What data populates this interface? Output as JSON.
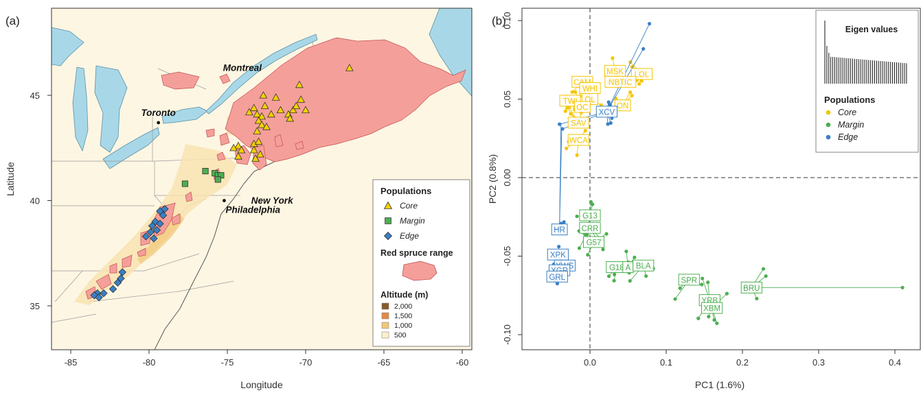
{
  "panel_a": {
    "label": "(a)",
    "xlabel": "Longitude",
    "ylabel": "Latitude",
    "xticks": [
      "-85",
      "-80",
      "-75",
      "-70",
      "-65",
      "-60"
    ],
    "yticks": [
      "35",
      "40",
      "45"
    ],
    "cities": [
      {
        "name": "Montreal",
        "lon": -73.6,
        "lat": 45.5,
        "dot": false
      },
      {
        "name": "Toronto",
        "lon": -79.4,
        "lat": 43.7,
        "dot": true
      },
      {
        "name": "New York",
        "lon": -74.0,
        "lat": 40.7,
        "dot": false
      },
      {
        "name": "Philadelphia",
        "lon": -75.2,
        "lat": 40.0,
        "dot": true
      }
    ],
    "legend": {
      "populations_title": "Populations",
      "items": [
        {
          "label": "Core",
          "shape": "triangle",
          "color": "#f5d000"
        },
        {
          "label": "Margin",
          "shape": "square",
          "color": "#4caf50"
        },
        {
          "label": "Edge",
          "shape": "diamond",
          "color": "#3a7fc4"
        }
      ],
      "range_title": "Red spruce range",
      "range_color": "#f59f9a",
      "altitude_title": "Altitude (m)",
      "altitude": [
        {
          "label": "2,000",
          "color": "#8b5a2b"
        },
        {
          "label": "1,500",
          "color": "#e08a48"
        },
        {
          "label": "1,000",
          "color": "#f2c679"
        },
        {
          "label": "500",
          "color": "#fbefcd"
        }
      ]
    },
    "sites": {
      "core": [
        [
          -72.7,
          45.0
        ],
        [
          -71.9,
          44.9
        ],
        [
          -70.4,
          45.5
        ],
        [
          -70.3,
          44.8
        ],
        [
          -73.3,
          44.4
        ],
        [
          -72.6,
          44.5
        ],
        [
          -71.6,
          44.3
        ],
        [
          -70.8,
          44.3
        ],
        [
          -70.6,
          44.5
        ],
        [
          -73.6,
          44.2
        ],
        [
          -73.1,
          44.1
        ],
        [
          -72.2,
          44.1
        ],
        [
          -71.1,
          44.1
        ],
        [
          -70.0,
          44.3
        ],
        [
          -67.2,
          46.3
        ],
        [
          -72.8,
          44.0
        ],
        [
          -73.0,
          43.8
        ],
        [
          -71.0,
          43.9
        ],
        [
          -72.8,
          43.6
        ],
        [
          -72.5,
          43.5
        ],
        [
          -73.1,
          43.3
        ],
        [
          -73.3,
          42.7
        ],
        [
          -73.0,
          42.8
        ],
        [
          -74.3,
          42.6
        ],
        [
          -74.1,
          42.4
        ],
        [
          -74.6,
          42.5
        ],
        [
          -73.3,
          42.4
        ],
        [
          -72.9,
          42.2
        ],
        [
          -73.2,
          42.0
        ],
        [
          -74.3,
          42.1
        ]
      ],
      "margin": [
        [
          -76.4,
          41.4
        ],
        [
          -75.8,
          41.3
        ],
        [
          -75.6,
          41.2
        ],
        [
          -75.4,
          41.2
        ],
        [
          -75.6,
          41.0
        ],
        [
          -77.7,
          40.8
        ]
      ],
      "edge": [
        [
          -79.3,
          39.5
        ],
        [
          -79.0,
          39.6
        ],
        [
          -79.1,
          39.3
        ],
        [
          -79.6,
          39.0
        ],
        [
          -79.8,
          38.8
        ],
        [
          -79.3,
          38.9
        ],
        [
          -79.5,
          38.6
        ],
        [
          -79.9,
          38.5
        ],
        [
          -80.2,
          38.3
        ],
        [
          -79.7,
          38.2
        ],
        [
          -81.7,
          36.6
        ],
        [
          -81.8,
          36.3
        ],
        [
          -82.0,
          36.1
        ],
        [
          -82.3,
          35.8
        ],
        [
          -83.3,
          35.6
        ],
        [
          -83.5,
          35.5
        ],
        [
          -83.2,
          35.4
        ],
        [
          -82.9,
          35.6
        ]
      ]
    }
  },
  "panel_b": {
    "label": "(b)",
    "chart_data": {
      "type": "scatter",
      "xlabel": "PC1 (1.6%)",
      "ylabel": "PC2 (0.8%)",
      "xlim": [
        -0.065,
        0.42
      ],
      "ylim": [
        -0.108,
        0.102
      ],
      "xticks": [
        "0.0",
        "0.1",
        "0.2",
        "0.3",
        "0.4"
      ],
      "yticks": [
        "-0.10",
        "-0.05",
        "0.00",
        "0.05",
        "0.10"
      ],
      "legend_title": "Populations",
      "legend_position": "top-right",
      "eigen_title": "Eigen values",
      "groups": [
        {
          "name": "Core",
          "color": "#f5c400",
          "centroids": [
            {
              "label": "MSK",
              "x": 0.033,
              "y": 0.068
            },
            {
              "label": "LOL",
              "x": 0.068,
              "y": 0.066
            },
            {
              "label": "NBTIC",
              "x": 0.04,
              "y": 0.061
            },
            {
              "label": "CAM",
              "x": -0.01,
              "y": 0.061
            },
            {
              "label": "WHI",
              "x": 0.0,
              "y": 0.057
            },
            {
              "label": "ON",
              "x": 0.043,
              "y": 0.046
            },
            {
              "label": "TWI",
              "x": -0.026,
              "y": 0.049
            },
            {
              "label": "OL",
              "x": 0.0,
              "y": 0.05
            },
            {
              "label": "OC",
              "x": -0.01,
              "y": 0.045
            },
            {
              "label": "SAV",
              "x": -0.015,
              "y": 0.035
            },
            {
              "label": "WCA",
              "x": -0.015,
              "y": 0.024
            }
          ]
        },
        {
          "name": "Margin",
          "color": "#4caf50",
          "centroids": [
            {
              "label": "G13",
              "x": 0.0,
              "y": -0.024
            },
            {
              "label": "CRR",
              "x": 0.0,
              "y": -0.032
            },
            {
              "label": "G57",
              "x": 0.005,
              "y": -0.041
            },
            {
              "label": "G18",
              "x": 0.035,
              "y": -0.057
            },
            {
              "label": "A",
              "x": 0.05,
              "y": -0.057
            },
            {
              "label": "BLA",
              "x": 0.07,
              "y": -0.056
            },
            {
              "label": "SPR",
              "x": 0.13,
              "y": -0.065
            },
            {
              "label": "BRU",
              "x": 0.212,
              "y": -0.07
            },
            {
              "label": "YRB",
              "x": 0.157,
              "y": -0.078
            },
            {
              "label": "XBM",
              "x": 0.16,
              "y": -0.083
            }
          ]
        },
        {
          "name": "Edge",
          "color": "#3a7fc4",
          "centroids": [
            {
              "label": "XCV",
              "x": 0.022,
              "y": 0.042
            },
            {
              "label": "HR",
              "x": -0.04,
              "y": -0.033
            },
            {
              "label": "XPK",
              "x": -0.042,
              "y": -0.049
            },
            {
              "label": "XWS",
              "x": -0.033,
              "y": -0.056
            },
            {
              "label": "XGR",
              "x": -0.04,
              "y": -0.059
            },
            {
              "label": "GRL",
              "x": -0.043,
              "y": -0.063
            }
          ]
        }
      ]
    }
  }
}
